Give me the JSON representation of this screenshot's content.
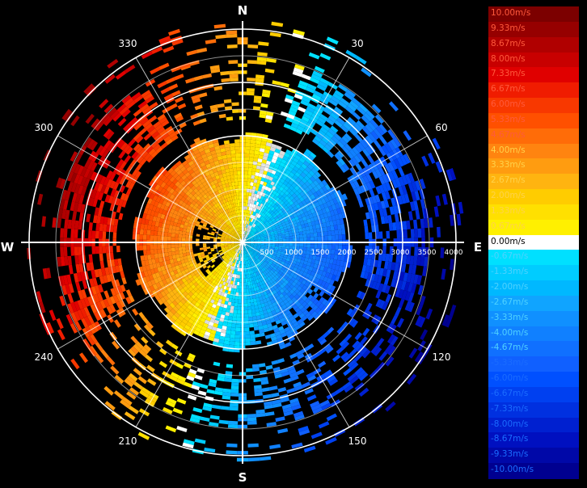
{
  "chart_data": {
    "type": "polar-ppi",
    "compass": {
      "north": "N",
      "south": "S",
      "east": "E",
      "west": "W"
    },
    "azimuth_tick_labels": [
      "30",
      "60",
      "120",
      "150",
      "210",
      "240",
      "300",
      "330"
    ],
    "range_tick_labels": [
      "500",
      "1000",
      "1500",
      "2000",
      "2500",
      "3000",
      "3500",
      "4000"
    ],
    "legend_labels": [
      "10.00m/s",
      "9.33m/s",
      "8.67m/s",
      "8.00m/s",
      "7.33m/s",
      "6.67m/s",
      "6.00m/s",
      "5.33m/s",
      "4.67m/s",
      "4.00m/s",
      "3.33m/s",
      "2.67m/s",
      "2.00m/s",
      "1.33m/s",
      "0.67m/s",
      "0.00m/s",
      "-0.67m/s",
      "-1.33m/s",
      "-2.00m/s",
      "-2.67m/s",
      "-3.33m/s",
      "-4.00m/s",
      "-4.67m/s",
      "-5.33m/s",
      "-6.00m/s",
      "-6.67m/s",
      "-7.33m/s",
      "-8.00m/s",
      "-8.67m/s",
      "-9.33m/s",
      "-10.00m/s"
    ],
    "legend_colors": [
      "#7c0000",
      "#960000",
      "#b00000",
      "#c80000",
      "#e00000",
      "#f01c00",
      "#f83800",
      "#ff5000",
      "#ff6c08",
      "#ff8410",
      "#ff9c10",
      "#ffb410",
      "#ffcc00",
      "#ffe000",
      "#fff000",
      "#ffffff",
      "#00e0ff",
      "#00ccff",
      "#00b8ff",
      "#10a4ff",
      "#1090ff",
      "#1080ff",
      "#1070ff",
      "#1060ff",
      "#0050ff",
      "#0040f0",
      "#0030e0",
      "#0020d0",
      "#0010c0",
      "#0008a8",
      "#000090"
    ],
    "velocity_range_mps": [
      -10,
      10
    ],
    "max_range_m": 4000,
    "range_ring_step_m": 500,
    "grid": true,
    "legend_position": "right"
  }
}
